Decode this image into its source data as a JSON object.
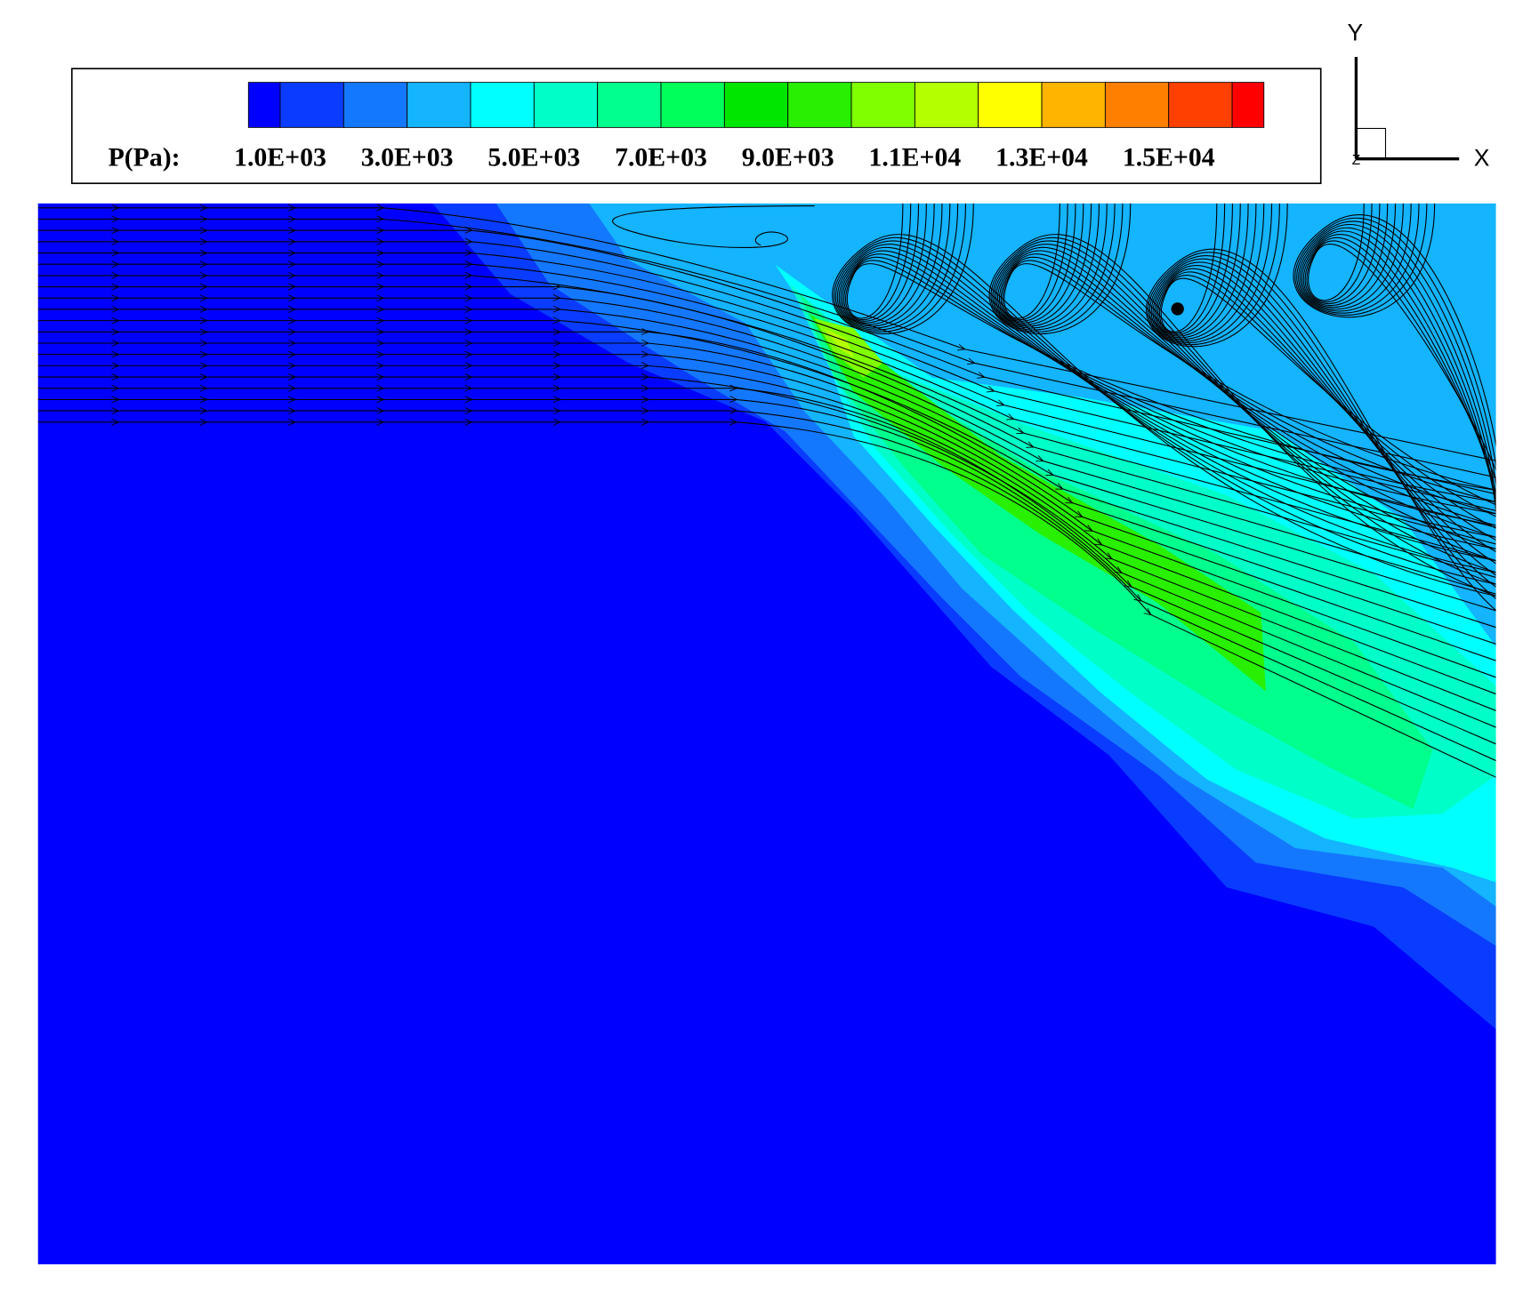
{
  "legend": {
    "title": "P(Pa):",
    "colorbar_range": [
      500,
      16500
    ],
    "levels": [
      1000,
      2000,
      3000,
      4000,
      5000,
      6000,
      7000,
      8000,
      9000,
      10000,
      11000,
      12000,
      13000,
      14000,
      15000,
      16000
    ],
    "colors": [
      "#0000ff",
      "#0a3cff",
      "#1478ff",
      "#14b4ff",
      "#00ffff",
      "#00ffc8",
      "#00ff8c",
      "#00ff5a",
      "#00e600",
      "#28f000",
      "#80ff00",
      "#b4ff00",
      "#ffff00",
      "#ffb400",
      "#ff8000",
      "#ff4000",
      "#ff0000"
    ],
    "ticks": [
      {
        "value": 1000,
        "label": "1.0E+03"
      },
      {
        "value": 3000,
        "label": "3.0E+03"
      },
      {
        "value": 5000,
        "label": "5.0E+03"
      },
      {
        "value": 7000,
        "label": "7.0E+03"
      },
      {
        "value": 9000,
        "label": "9.0E+03"
      },
      {
        "value": 11000,
        "label": "1.1E+04"
      },
      {
        "value": 13000,
        "label": "1.3E+04"
      },
      {
        "value": 15000,
        "label": "1.5E+04"
      }
    ]
  },
  "triad": {
    "x": "X",
    "y": "Y",
    "z": "Z"
  }
}
